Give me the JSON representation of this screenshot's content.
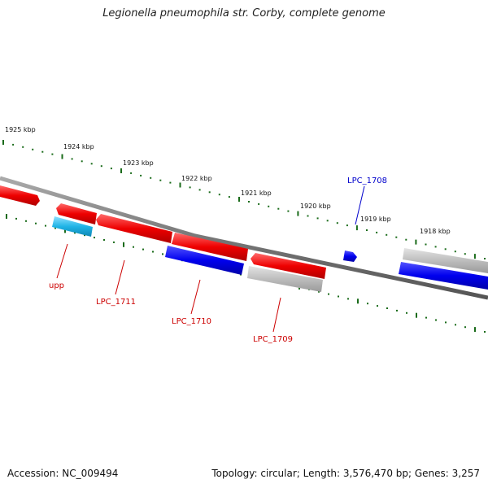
{
  "title": "Legionella pneumophila str. Corby, complete genome",
  "footer": {
    "accession": "Accession: NC_009494",
    "info": "Topology: circular; Length: 3,576,470 bp; Genes: 3,257"
  },
  "colors": {
    "forward": "#ff0000",
    "reverse_blue": "#0000ff",
    "rna_cyan": "#1fb4e6",
    "pseudo_gray": "#bdbdbd",
    "backbone": "#777777",
    "ticks": "#1a6b1a"
  },
  "kbp_labels": [
    "1925 kbp",
    "1924 kbp",
    "1923 kbp",
    "1922 kbp",
    "1921 kbp",
    "1920 kbp",
    "1919 kbp",
    "1918 kbp"
  ],
  "gene_labels": [
    {
      "name": "upp",
      "color": "#cc0000"
    },
    {
      "name": "LPC_1711",
      "color": "#cc0000"
    },
    {
      "name": "LPC_1710",
      "color": "#cc0000"
    },
    {
      "name": "LPC_1709",
      "color": "#cc0000"
    },
    {
      "name": "LPC_1708",
      "color": "#0000cc"
    }
  ]
}
